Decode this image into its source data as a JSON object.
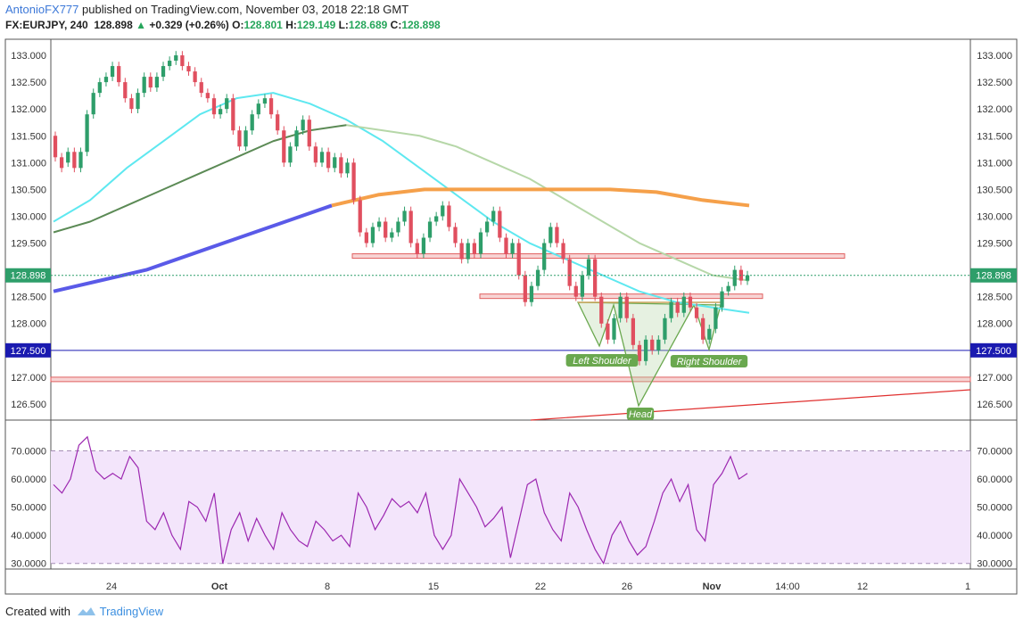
{
  "header": {
    "author": "AntonioFX777",
    "published_text": "published on TradingView.com, November 03, 2018 22:18 GMT",
    "symbol": "FX:EURJPY, 240",
    "last": "128.898",
    "change": "+0.329 (+0.26%)",
    "o_label": "O:",
    "o_value": "128.801",
    "h_label": "H:",
    "h_value": "129.149",
    "l_label": "L:",
    "l_value": "128.689",
    "c_label": "C:",
    "c_value": "128.898"
  },
  "footer": {
    "created_with": "Created with",
    "brand": "TradingView"
  },
  "colors": {
    "bull": "#2e9e6a",
    "bear": "#e04f5f",
    "ema_fast": "#5ee8f0",
    "ema_mid": "#5b8a55",
    "ema_mid_light": "#b6d7a8",
    "ema_slow_blue": "#5a5ae8",
    "ema_slow_orange": "#f5a04a",
    "rsi": "#9c27b0",
    "rsi_band": "#f3e5fb",
    "hline": "#1a1ab0",
    "trend": "#e0302f",
    "pattern": "#6aa84f"
  },
  "chart_data": {
    "type": "candlestick",
    "symbol": "FX:EURJPY",
    "timeframe": "240",
    "price_axis": {
      "range": [
        126.2,
        133.3
      ],
      "ticks": [
        "133.000",
        "132.500",
        "132.000",
        "131.500",
        "131.000",
        "130.500",
        "130.000",
        "129.500",
        "128.500",
        "128.000",
        "127.000",
        "126.500"
      ],
      "current_price_label": "128.898",
      "hline_label": "127.500"
    },
    "rsi_axis": {
      "range": [
        28,
        80
      ],
      "ticks": [
        "70.0000",
        "60.0000",
        "50.0000",
        "40.0000",
        "30.0000"
      ],
      "band": [
        30,
        70
      ]
    },
    "time_axis": {
      "ticks": [
        "24",
        "Oct",
        "8",
        "15",
        "22",
        "26",
        "Nov",
        "14:00",
        "12",
        "1"
      ]
    },
    "candles": [
      [
        131.5,
        131.1
      ],
      [
        131.1,
        130.9
      ],
      [
        131.0,
        131.2
      ],
      [
        131.2,
        130.9
      ],
      [
        130.9,
        131.2
      ],
      [
        131.2,
        131.9
      ],
      [
        131.9,
        132.3
      ],
      [
        132.3,
        132.5
      ],
      [
        132.5,
        132.6
      ],
      [
        132.6,
        132.8
      ],
      [
        132.8,
        132.5
      ],
      [
        132.5,
        132.2
      ],
      [
        132.2,
        132.0
      ],
      [
        132.0,
        132.3
      ],
      [
        132.3,
        132.6
      ],
      [
        132.6,
        132.4
      ],
      [
        132.4,
        132.6
      ],
      [
        132.6,
        132.8
      ],
      [
        132.8,
        132.9
      ],
      [
        132.9,
        133.0
      ],
      [
        133.0,
        132.8
      ],
      [
        132.8,
        132.7
      ],
      [
        132.7,
        132.5
      ],
      [
        132.5,
        132.3
      ],
      [
        132.3,
        132.2
      ],
      [
        132.2,
        131.9
      ],
      [
        131.9,
        132.0
      ],
      [
        132.0,
        132.2
      ],
      [
        132.2,
        131.6
      ],
      [
        131.6,
        131.3
      ],
      [
        131.3,
        131.6
      ],
      [
        131.6,
        131.9
      ],
      [
        131.9,
        132.1
      ],
      [
        132.1,
        132.2
      ],
      [
        132.2,
        131.9
      ],
      [
        131.9,
        131.6
      ],
      [
        131.6,
        131.0
      ],
      [
        131.0,
        131.3
      ],
      [
        131.3,
        131.6
      ],
      [
        131.6,
        131.8
      ],
      [
        131.8,
        131.3
      ],
      [
        131.3,
        131.0
      ],
      [
        131.0,
        131.2
      ],
      [
        131.2,
        130.9
      ],
      [
        130.9,
        131.1
      ],
      [
        131.1,
        130.8
      ],
      [
        130.8,
        131.0
      ],
      [
        131.0,
        130.3
      ],
      [
        130.3,
        129.7
      ],
      [
        129.7,
        129.5
      ],
      [
        129.5,
        129.8
      ],
      [
        129.8,
        129.9
      ],
      [
        129.9,
        129.6
      ],
      [
        129.6,
        129.7
      ],
      [
        129.7,
        129.9
      ],
      [
        129.9,
        130.1
      ],
      [
        130.1,
        129.5
      ],
      [
        129.5,
        129.3
      ],
      [
        129.3,
        129.6
      ],
      [
        129.6,
        129.9
      ],
      [
        129.9,
        130.0
      ],
      [
        130.0,
        130.2
      ],
      [
        130.2,
        129.8
      ],
      [
        129.8,
        129.5
      ],
      [
        129.5,
        129.2
      ],
      [
        129.2,
        129.5
      ],
      [
        129.5,
        129.3
      ],
      [
        129.3,
        129.7
      ],
      [
        129.7,
        129.9
      ],
      [
        129.9,
        130.1
      ],
      [
        130.1,
        129.6
      ],
      [
        129.6,
        129.3
      ],
      [
        129.3,
        129.5
      ],
      [
        129.5,
        128.9
      ],
      [
        128.9,
        128.4
      ],
      [
        128.4,
        128.7
      ],
      [
        128.7,
        129.0
      ],
      [
        129.0,
        129.5
      ],
      [
        129.5,
        129.8
      ],
      [
        129.8,
        129.5
      ],
      [
        129.5,
        129.2
      ],
      [
        129.2,
        128.7
      ],
      [
        128.7,
        128.5
      ],
      [
        128.5,
        128.9
      ],
      [
        128.9,
        129.2
      ],
      [
        129.2,
        128.5
      ],
      [
        128.5,
        128.0
      ],
      [
        128.0,
        127.7
      ],
      [
        127.7,
        128.1
      ],
      [
        128.1,
        128.5
      ],
      [
        128.5,
        128.1
      ],
      [
        128.1,
        127.6
      ],
      [
        127.6,
        127.3
      ],
      [
        127.3,
        127.7
      ],
      [
        127.7,
        127.5
      ],
      [
        127.5,
        127.7
      ],
      [
        127.7,
        128.1
      ],
      [
        128.1,
        128.4
      ],
      [
        128.4,
        128.2
      ],
      [
        128.2,
        128.5
      ],
      [
        128.5,
        128.3
      ],
      [
        128.3,
        128.1
      ],
      [
        128.1,
        127.7
      ],
      [
        127.7,
        127.9
      ],
      [
        127.9,
        128.3
      ],
      [
        128.3,
        128.6
      ],
      [
        128.6,
        128.7
      ],
      [
        128.7,
        129.0
      ],
      [
        129.0,
        128.8
      ],
      [
        128.8,
        128.9
      ]
    ],
    "indicators": [
      {
        "name": "EMA fast (cyan)",
        "values": [
          129.9,
          130.3,
          130.9,
          131.4,
          131.9,
          132.2,
          132.3,
          132.1,
          131.8,
          131.4,
          130.9,
          130.4,
          129.9,
          129.5,
          129.2,
          128.9,
          128.6,
          128.4,
          128.3,
          128.2
        ]
      },
      {
        "name": "EMA mid (green)",
        "values": [
          129.7,
          129.9,
          130.2,
          130.5,
          130.8,
          131.1,
          131.4,
          131.6,
          131.7,
          131.6,
          131.5,
          131.3,
          131.0,
          130.7,
          130.3,
          129.9,
          129.5,
          129.2,
          128.9,
          128.8
        ]
      },
      {
        "name": "EMA 200 (blue/orange)",
        "values": [
          128.6,
          128.8,
          129.0,
          129.3,
          129.6,
          129.9,
          130.2,
          130.4,
          130.5,
          130.5,
          130.5,
          130.5,
          130.5,
          130.45,
          130.3,
          130.2
        ]
      }
    ],
    "rsi": [
      58,
      55,
      60,
      72,
      75,
      63,
      60,
      62,
      60,
      68,
      64,
      45,
      42,
      48,
      40,
      35,
      52,
      50,
      45,
      55,
      30,
      42,
      48,
      38,
      46,
      40,
      35,
      48,
      42,
      38,
      36,
      45,
      42,
      38,
      40,
      36,
      55,
      50,
      42,
      47,
      53,
      50,
      52,
      48,
      55,
      40,
      35,
      40,
      60,
      55,
      50,
      43,
      46,
      50,
      32,
      45,
      58,
      60,
      48,
      42,
      38,
      55,
      50,
      42,
      35,
      30,
      40,
      45,
      38,
      33,
      36,
      45,
      55,
      60,
      52,
      58,
      42,
      38,
      58,
      62,
      68,
      60,
      62
    ]
  },
  "annotations": {
    "left_shoulder": "Left Shoulder",
    "head": "Head",
    "right_shoulder": "Right Shoulder"
  }
}
